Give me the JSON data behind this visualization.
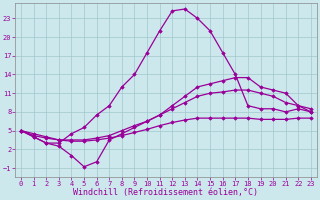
{
  "bg_color": "#cce8ec",
  "grid_color": "#a0c8cc",
  "line_color": "#990099",
  "xlabel": "Windchill (Refroidissement éolien,°C)",
  "ylim": [
    -2.5,
    25.5
  ],
  "xlim": [
    -0.5,
    23.5
  ],
  "yticks": [
    -1,
    2,
    5,
    8,
    11,
    14,
    17,
    20,
    23
  ],
  "series1_x": [
    0,
    1,
    2,
    3,
    4,
    5,
    6,
    7,
    8,
    9,
    10,
    11,
    12,
    13,
    14,
    15,
    16,
    17,
    18,
    19,
    20,
    21,
    22,
    23
  ],
  "series1_y": [
    5.0,
    4.0,
    3.0,
    3.0,
    4.5,
    5.5,
    7.5,
    9.0,
    12.0,
    14.0,
    17.5,
    21.0,
    24.2,
    24.5,
    23.0,
    21.0,
    17.5,
    14.0,
    9.0,
    8.5,
    8.5,
    8.0,
    8.5,
    8.0
  ],
  "series2_x": [
    0,
    1,
    2,
    3,
    4,
    5,
    6,
    7,
    8,
    9,
    10,
    11,
    12,
    13,
    14,
    15,
    16,
    17,
    18,
    19,
    20,
    21,
    22,
    23
  ],
  "series2_y": [
    5.0,
    4.0,
    3.0,
    2.5,
    1.0,
    -0.8,
    0.0,
    3.5,
    4.5,
    5.5,
    6.5,
    7.5,
    9.0,
    10.5,
    12.0,
    12.5,
    13.0,
    13.5,
    13.5,
    12.0,
    11.5,
    11.0,
    9.0,
    8.0
  ],
  "series3_x": [
    0,
    1,
    2,
    3,
    4,
    5,
    6,
    7,
    8,
    9,
    10,
    11,
    12,
    13,
    14,
    15,
    16,
    17,
    18,
    19,
    20,
    21,
    22,
    23
  ],
  "series3_y": [
    5.0,
    4.5,
    4.0,
    3.5,
    3.5,
    3.5,
    3.8,
    4.2,
    5.0,
    5.8,
    6.5,
    7.5,
    8.5,
    9.5,
    10.5,
    11.0,
    11.2,
    11.5,
    11.5,
    11.0,
    10.5,
    9.5,
    9.0,
    8.5
  ],
  "series4_x": [
    0,
    1,
    2,
    3,
    4,
    5,
    6,
    7,
    8,
    9,
    10,
    11,
    12,
    13,
    14,
    15,
    16,
    17,
    18,
    19,
    20,
    21,
    22,
    23
  ],
  "series4_y": [
    5.0,
    4.2,
    3.8,
    3.5,
    3.3,
    3.3,
    3.5,
    3.8,
    4.2,
    4.7,
    5.2,
    5.8,
    6.3,
    6.7,
    7.0,
    7.0,
    7.0,
    7.0,
    7.0,
    6.8,
    6.8,
    6.8,
    7.0,
    7.0
  ]
}
